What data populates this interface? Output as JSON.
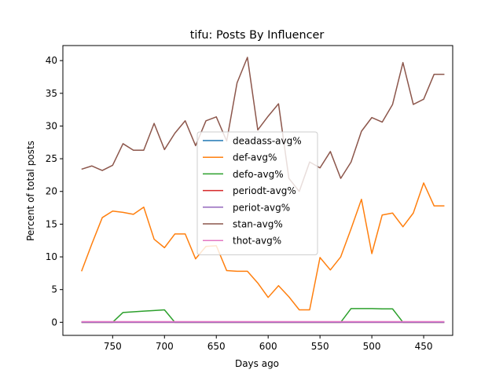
{
  "chart_data": {
    "type": "line",
    "title": "tifu: Posts By Influencer",
    "xlabel": "Days ago",
    "ylabel": "Percent of total posts",
    "xlim": [
      798,
      422
    ],
    "ylim": [
      -2,
      42.3
    ],
    "x_inverted": true,
    "x_ticks": [
      750,
      700,
      650,
      600,
      550,
      500,
      450
    ],
    "y_ticks": [
      0,
      5,
      10,
      15,
      20,
      25,
      30,
      35,
      40
    ],
    "grid": false,
    "legend_position": "center",
    "x": [
      780,
      770,
      760,
      750,
      740,
      730,
      720,
      710,
      700,
      690,
      680,
      670,
      660,
      650,
      640,
      630,
      620,
      610,
      600,
      590,
      580,
      570,
      560,
      550,
      540,
      530,
      520,
      510,
      500,
      490,
      480,
      470,
      460,
      450,
      440,
      430
    ],
    "series": [
      {
        "name": "deadass-avg%",
        "color": "#1f77b4",
        "values": [
          0.05,
          0.05,
          0.05,
          0.05,
          0.05,
          0.05,
          0.05,
          0.05,
          0.05,
          0.05,
          0.05,
          0.05,
          0.05,
          0.05,
          0.05,
          0.05,
          0.05,
          0.05,
          0.05,
          0.05,
          0.05,
          0.05,
          0.05,
          0.05,
          0.05,
          0.05,
          0.05,
          0.05,
          0.05,
          0.05,
          0.05,
          0.05,
          0.05,
          0.05,
          0.05,
          0.05
        ]
      },
      {
        "name": "def-avg%",
        "color": "#ff7f0e",
        "values": [
          7.8,
          12.0,
          16.0,
          17.0,
          16.8,
          16.5,
          17.6,
          12.7,
          11.4,
          13.5,
          13.5,
          9.7,
          11.6,
          11.7,
          7.9,
          7.8,
          7.8,
          6.0,
          3.8,
          5.6,
          3.9,
          1.9,
          1.9,
          9.9,
          8.0,
          10.0,
          14.3,
          18.8,
          10.5,
          16.4,
          16.7,
          14.6,
          16.7,
          21.3,
          17.8,
          17.8
        ]
      },
      {
        "name": "defo-avg%",
        "color": "#2ca02c",
        "values": [
          0.0,
          0.0,
          0.0,
          0.0,
          1.5,
          1.6,
          1.7,
          1.8,
          1.9,
          0.0,
          0.0,
          0.0,
          0.0,
          0.0,
          0.0,
          0.0,
          0.0,
          0.0,
          0.0,
          0.0,
          0.0,
          0.0,
          0.0,
          0.0,
          0.0,
          0.0,
          2.1,
          2.1,
          2.1,
          2.05,
          2.05,
          0.0,
          0.0,
          0.0,
          0.0,
          0.0
        ]
      },
      {
        "name": "periodt-avg%",
        "color": "#d62728",
        "values": [
          0.0,
          0.0,
          0.0,
          0.0,
          0.0,
          0.0,
          0.0,
          0.0,
          0.0,
          0.0,
          0.0,
          0.0,
          0.0,
          0.0,
          0.0,
          0.0,
          0.0,
          0.0,
          0.0,
          0.0,
          0.0,
          0.0,
          0.0,
          0.0,
          0.0,
          0.0,
          0.0,
          0.0,
          0.0,
          0.0,
          0.0,
          0.0,
          0.0,
          0.0,
          0.0,
          0.0
        ]
      },
      {
        "name": "periot-avg%",
        "color": "#9467bd",
        "values": [
          0.0,
          0.0,
          0.0,
          0.0,
          0.0,
          0.0,
          0.0,
          0.0,
          0.0,
          0.0,
          0.0,
          0.0,
          0.0,
          0.0,
          0.0,
          0.0,
          0.0,
          0.0,
          0.0,
          0.0,
          0.0,
          0.0,
          0.0,
          0.0,
          0.0,
          0.0,
          0.0,
          0.0,
          0.0,
          0.0,
          0.0,
          0.0,
          0.0,
          0.0,
          0.0,
          0.0
        ]
      },
      {
        "name": "stan-avg%",
        "color": "#8c564b",
        "values": [
          23.4,
          23.9,
          23.2,
          24.0,
          27.3,
          26.3,
          26.3,
          30.4,
          26.4,
          28.9,
          30.8,
          27.0,
          30.8,
          31.4,
          27.7,
          36.6,
          40.5,
          29.4,
          31.5,
          33.4,
          22.0,
          20.0,
          24.5,
          23.6,
          26.1,
          22.0,
          24.5,
          29.2,
          31.3,
          30.6,
          33.3,
          39.7,
          33.3,
          34.1,
          37.9,
          37.9
        ]
      },
      {
        "name": "thot-avg%",
        "color": "#e377c2",
        "values": [
          0.1,
          0.1,
          0.1,
          0.1,
          0.1,
          0.1,
          0.1,
          0.1,
          0.1,
          0.1,
          0.1,
          0.1,
          0.1,
          0.1,
          0.1,
          0.1,
          0.1,
          0.1,
          0.1,
          0.1,
          0.1,
          0.1,
          0.1,
          0.1,
          0.1,
          0.1,
          0.1,
          0.1,
          0.1,
          0.1,
          0.1,
          0.1,
          0.1,
          0.1,
          0.1,
          0.1
        ]
      }
    ]
  }
}
